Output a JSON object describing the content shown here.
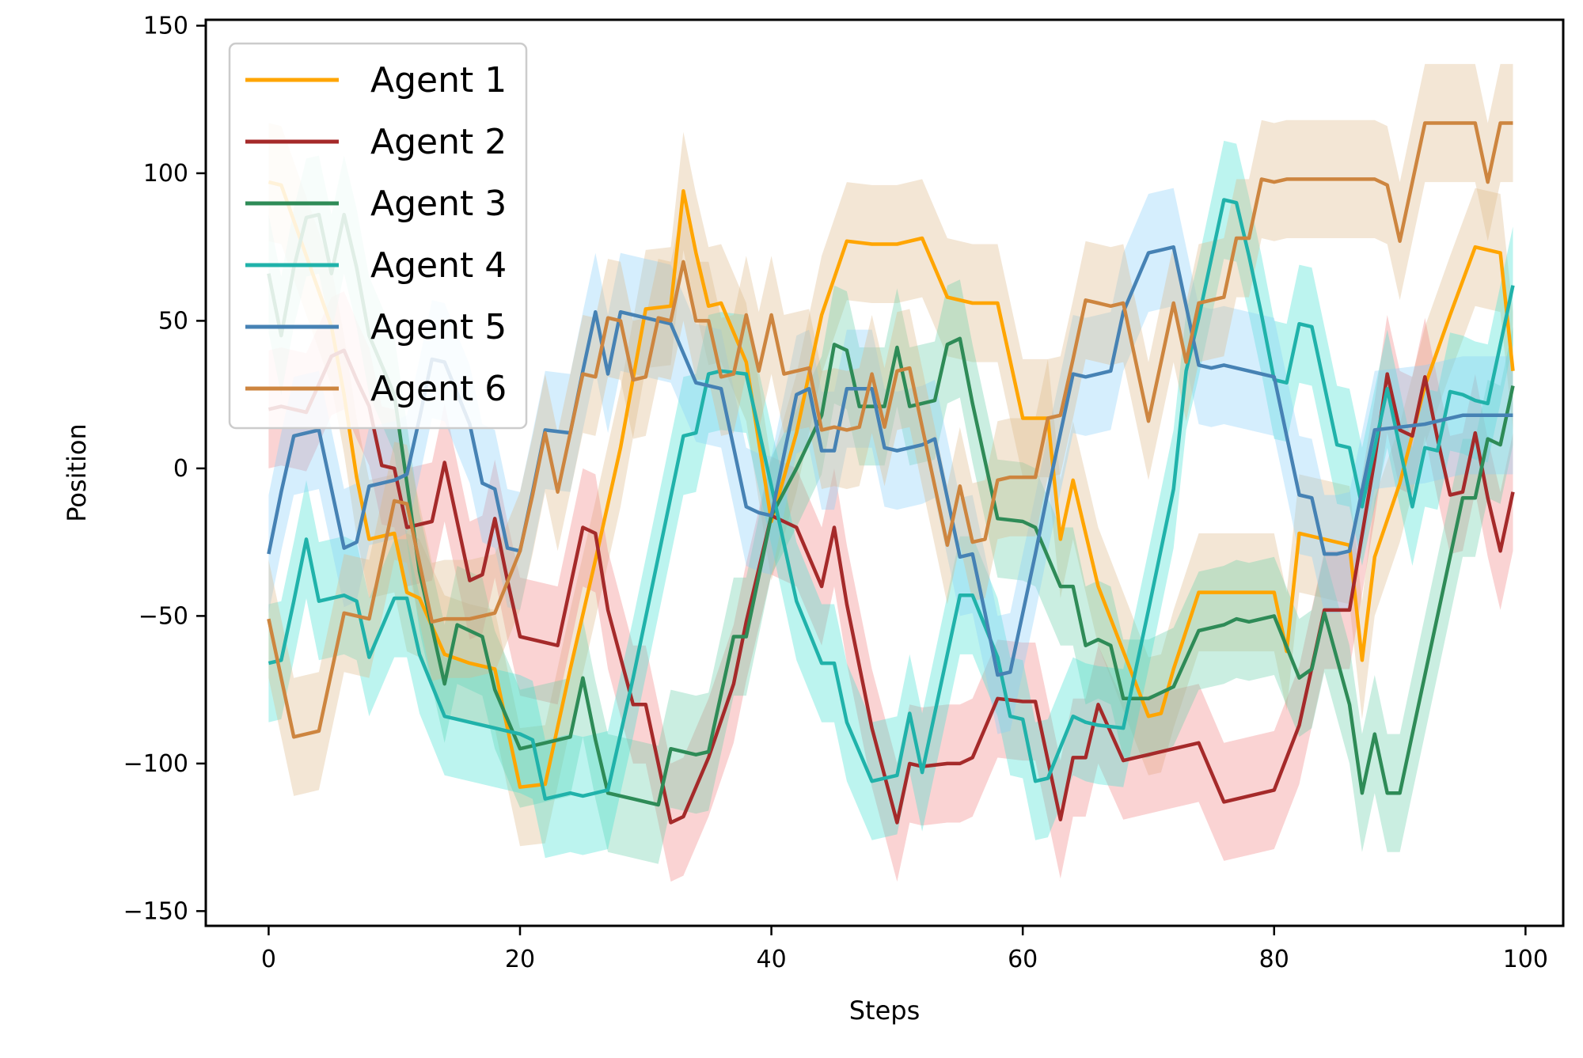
{
  "chart_data": {
    "type": "line",
    "title": "",
    "xlabel": "Steps",
    "ylabel": "Position",
    "xlim": [
      -5,
      103
    ],
    "ylim": [
      -155,
      152
    ],
    "x_ticks": [
      0,
      20,
      40,
      60,
      80,
      100
    ],
    "y_ticks": [
      -150,
      -100,
      -50,
      0,
      50,
      100,
      150
    ],
    "y_tick_labels": [
      "−150",
      "−100",
      "−50",
      "0",
      "50",
      "100",
      "150"
    ],
    "grid": false,
    "legend_position": "top-left",
    "band_halfwidth": 20,
    "series": [
      {
        "name": "Agent 1",
        "color": "#FFA500",
        "band_color": "#DEB887",
        "x": [
          0,
          1,
          3,
          5,
          6,
          7,
          8,
          10,
          11,
          12,
          14,
          16,
          18,
          20,
          22,
          24,
          26,
          28,
          30,
          32,
          33,
          34,
          35,
          36,
          38,
          40,
          42,
          44,
          46,
          48,
          50,
          52,
          54,
          56,
          58,
          60,
          62,
          63,
          64,
          66,
          68,
          70,
          71,
          72,
          74,
          76,
          78,
          80,
          81,
          82,
          84,
          86,
          87,
          88,
          90,
          92,
          94,
          96,
          98,
          99
        ],
        "values": [
          97,
          96,
          72,
          48,
          25,
          -3,
          -24,
          -22,
          -42,
          -44,
          -63,
          -66,
          -68,
          -108,
          -107,
          -68,
          -31,
          7,
          54,
          55,
          94,
          73,
          55,
          56,
          36,
          -18,
          12,
          52,
          77,
          76,
          76,
          78,
          58,
          56,
          56,
          17,
          17,
          -24,
          -4,
          -40,
          -62,
          -84,
          -83,
          -68,
          -42,
          -42,
          -42,
          -42,
          -62,
          -22,
          -24,
          -26,
          -65,
          -30,
          -5,
          28,
          52,
          75,
          73,
          33
        ]
      },
      {
        "name": "Agent 2",
        "color": "#A52A2A",
        "band_color": "#F08080",
        "x": [
          0,
          1,
          2,
          3,
          5,
          6,
          7,
          8,
          9,
          10,
          11,
          13,
          14,
          16,
          17,
          18,
          19,
          20,
          23,
          25,
          26,
          27,
          29,
          30,
          31,
          32,
          33,
          35,
          37,
          38,
          40,
          42,
          44,
          45,
          46,
          48,
          50,
          51,
          52,
          54,
          55,
          56,
          58,
          60,
          61,
          63,
          64,
          65,
          66,
          68,
          70,
          72,
          74,
          76,
          78,
          80,
          82,
          84,
          86,
          88,
          89,
          90,
          91,
          92,
          93,
          94,
          95,
          96,
          97,
          98,
          99
        ],
        "values": [
          20,
          21,
          20,
          19,
          38,
          40,
          30,
          21,
          1,
          0,
          -20,
          -18,
          2,
          -38,
          -36,
          -17,
          -38,
          -57,
          -60,
          -20,
          -22,
          -48,
          -80,
          -80,
          -100,
          -120,
          -118,
          -98,
          -73,
          -52,
          -16,
          -20,
          -40,
          -20,
          -46,
          -88,
          -120,
          -100,
          -101,
          -100,
          -100,
          -98,
          -78,
          -79,
          -79,
          -119,
          -98,
          -98,
          -80,
          -99,
          -97,
          -95,
          -93,
          -113,
          -111,
          -109,
          -87,
          -48,
          -48,
          3,
          32,
          13,
          11,
          31,
          10,
          -9,
          -8,
          12,
          -10,
          -28,
          -8
        ]
      },
      {
        "name": "Agent 3",
        "color": "#2E8B57",
        "band_color": "#66CDAA",
        "x": [
          0,
          1,
          2,
          3,
          4,
          5,
          6,
          7,
          8,
          10,
          12,
          14,
          15,
          17,
          18,
          20,
          22,
          24,
          25,
          26,
          27,
          29,
          31,
          32,
          34,
          35,
          37,
          38,
          40,
          42,
          44,
          45,
          46,
          47,
          48,
          49,
          50,
          51,
          53,
          54,
          55,
          56,
          58,
          60,
          61,
          63,
          64,
          65,
          66,
          67,
          68,
          70,
          72,
          74,
          76,
          77,
          78,
          80,
          82,
          83,
          84,
          86,
          87,
          88,
          89,
          90,
          91,
          92,
          93,
          94,
          95,
          96,
          97,
          98,
          99
        ],
        "values": [
          66,
          45,
          68,
          85,
          86,
          66,
          86,
          68,
          45,
          25,
          -35,
          -73,
          -53,
          -57,
          -75,
          -95,
          -93,
          -91,
          -71,
          -92,
          -110,
          -112,
          -114,
          -95,
          -97,
          -96,
          -57,
          -57,
          -16,
          0,
          18,
          42,
          40,
          21,
          21,
          21,
          41,
          21,
          23,
          42,
          44,
          22,
          -17,
          -18,
          -20,
          -40,
          -40,
          -60,
          -58,
          -60,
          -78,
          -78,
          -74,
          -55,
          -53,
          -51,
          -52,
          -50,
          -71,
          -68,
          -49,
          -80,
          -110,
          -90,
          -110,
          -110,
          -90,
          -70,
          -50,
          -30,
          -10,
          -10,
          10,
          8,
          28
        ]
      },
      {
        "name": "Agent 4",
        "color": "#20B2AA",
        "band_color": "#40E0D0",
        "x": [
          0,
          1,
          2,
          3,
          4,
          5,
          6,
          7,
          8,
          10,
          11,
          12,
          14,
          15,
          16,
          18,
          20,
          21,
          22,
          24,
          25,
          27,
          29,
          31,
          33,
          34,
          35,
          36,
          38,
          40,
          42,
          44,
          45,
          46,
          48,
          50,
          51,
          52,
          54,
          55,
          56,
          58,
          59,
          60,
          61,
          62,
          64,
          65,
          66,
          68,
          70,
          72,
          73,
          74,
          76,
          77,
          78,
          79,
          80,
          81,
          82,
          83,
          84,
          85,
          86,
          87,
          88,
          89,
          90,
          91,
          92,
          93,
          94,
          95,
          96,
          97,
          98,
          99
        ],
        "values": [
          -66,
          -65,
          -45,
          -24,
          -45,
          -44,
          -43,
          -45,
          -64,
          -44,
          -44,
          -63,
          -84,
          -85,
          -86,
          -88,
          -90,
          -92,
          -112,
          -110,
          -111,
          -109,
          -71,
          -30,
          11,
          12,
          32,
          33,
          32,
          -6,
          -45,
          -66,
          -66,
          -86,
          -106,
          -104,
          -83,
          -103,
          -63,
          -43,
          -43,
          -64,
          -84,
          -85,
          -106,
          -105,
          -84,
          -86,
          -87,
          -88,
          -48,
          -7,
          33,
          51,
          91,
          90,
          72,
          52,
          30,
          29,
          49,
          48,
          28,
          8,
          7,
          -13,
          7,
          27,
          7,
          -13,
          7,
          6,
          26,
          25,
          23,
          22,
          42,
          62
        ]
      },
      {
        "name": "Agent 5",
        "color": "#4682B4",
        "band_color": "#87CEFA",
        "x": [
          0,
          1,
          2,
          4,
          6,
          7,
          8,
          10,
          11,
          12,
          13,
          14,
          16,
          17,
          18,
          19,
          20,
          21,
          22,
          24,
          25,
          26,
          27,
          28,
          30,
          31,
          32,
          34,
          36,
          38,
          39,
          40,
          42,
          43,
          44,
          45,
          46,
          48,
          49,
          50,
          52,
          53,
          54,
          55,
          56,
          57,
          58,
          59,
          60,
          61,
          62,
          64,
          65,
          66,
          67,
          68,
          70,
          71,
          72,
          73,
          74,
          75,
          76,
          78,
          80,
          81,
          82,
          83,
          84,
          85,
          86,
          88,
          90,
          92,
          93,
          94,
          95,
          96,
          97,
          98,
          99
        ],
        "values": [
          -29,
          -8,
          11,
          13,
          -27,
          -25,
          -6,
          -4,
          -2,
          17,
          37,
          36,
          15,
          -5,
          -7,
          -27,
          -28,
          -8,
          13,
          12,
          33,
          53,
          32,
          53,
          51,
          50,
          49,
          29,
          27,
          -13,
          -15,
          -16,
          25,
          27,
          6,
          6,
          27,
          27,
          7,
          6,
          8,
          10,
          -10,
          -30,
          -29,
          -49,
          -70,
          -69,
          -49,
          -29,
          -8,
          32,
          31,
          32,
          33,
          53,
          73,
          74,
          75,
          55,
          35,
          34,
          35,
          33,
          31,
          11,
          -9,
          -10,
          -29,
          -29,
          -28,
          13,
          14,
          15,
          16,
          17,
          18,
          18,
          18,
          18,
          18
        ]
      },
      {
        "name": "Agent 6",
        "color": "#CD853F",
        "band_color": "#DEB887",
        "x": [
          0,
          2,
          4,
          6,
          8,
          10,
          11,
          12,
          13,
          14,
          16,
          17,
          18,
          20,
          21,
          22,
          23,
          25,
          26,
          27,
          28,
          29,
          30,
          31,
          32,
          33,
          34,
          35,
          36,
          37,
          38,
          39,
          40,
          41,
          42,
          43,
          44,
          45,
          46,
          47,
          48,
          49,
          50,
          51,
          52,
          53,
          54,
          55,
          56,
          57,
          58,
          59,
          60,
          61,
          62,
          63,
          64,
          65,
          66,
          67,
          68,
          70,
          71,
          72,
          73,
          74,
          75,
          76,
          77,
          78,
          79,
          80,
          81,
          82,
          84,
          86,
          88,
          89,
          90,
          91,
          92,
          93,
          94,
          95,
          96,
          97,
          98,
          99
        ],
        "values": [
          -51,
          -91,
          -89,
          -49,
          -51,
          -11,
          -12,
          -32,
          -52,
          -51,
          -51,
          -50,
          -49,
          -28,
          -9,
          12,
          -8,
          32,
          31,
          51,
          50,
          30,
          31,
          51,
          50,
          70,
          50,
          50,
          31,
          32,
          52,
          33,
          52,
          32,
          33,
          34,
          13,
          14,
          13,
          14,
          32,
          14,
          33,
          34,
          14,
          -6,
          -26,
          -6,
          -25,
          -24,
          -4,
          -3,
          -3,
          -3,
          17,
          18,
          37,
          57,
          56,
          55,
          56,
          16,
          36,
          56,
          36,
          56,
          57,
          58,
          78,
          78,
          98,
          97,
          98,
          98,
          98,
          98,
          98,
          96,
          77,
          97,
          117,
          117,
          117,
          117,
          117,
          97,
          117,
          117
        ]
      }
    ]
  }
}
